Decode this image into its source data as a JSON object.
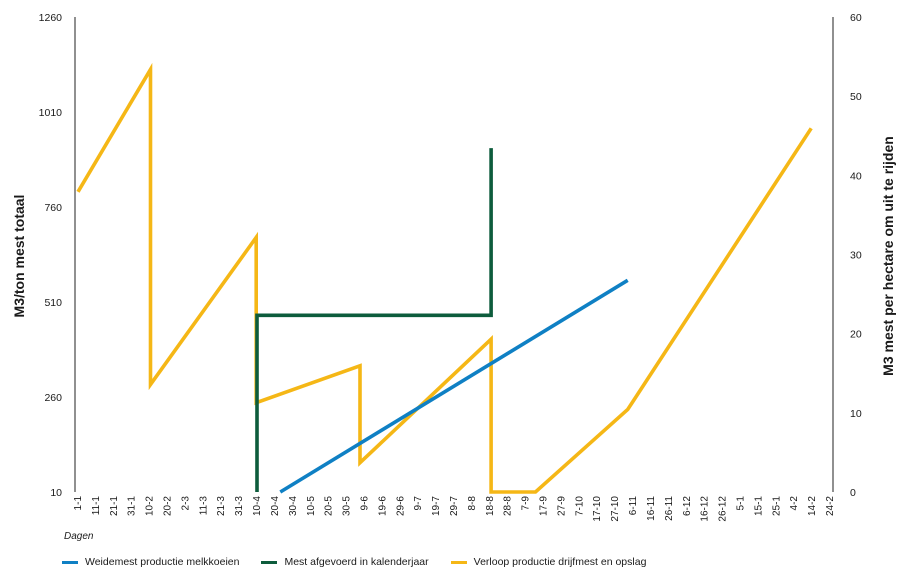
{
  "chart_data": {
    "type": "line",
    "left_axis": {
      "label": "M3/ton mest totaal",
      "ticks": [
        10,
        260,
        510,
        760,
        1010,
        1260
      ],
      "range": [
        10,
        1260
      ]
    },
    "right_axis": {
      "label": "M3 mest per hectare om uit te rijden",
      "ticks": [
        0,
        10,
        20,
        30,
        40,
        50,
        60
      ],
      "range": [
        0,
        60
      ]
    },
    "x_sublabel": "Dagen",
    "categories": [
      "1-1",
      "11-1",
      "21-1",
      "31-1",
      "10-2",
      "20-2",
      "2-3",
      "11-3",
      "21-3",
      "31-3",
      "10-4",
      "20-4",
      "30-4",
      "10-5",
      "20-5",
      "30-5",
      "9-6",
      "19-6",
      "29-6",
      "9-7",
      "19-7",
      "29-7",
      "8-8",
      "18-8",
      "28-8",
      "7-9",
      "17-9",
      "27-9",
      "7-10",
      "17-10",
      "27-10",
      "6-11",
      "16-11",
      "26-11",
      "6-12",
      "16-12",
      "26-12",
      "5-1",
      "15-1",
      "25-1",
      "4-2",
      "14-2",
      "24-2"
    ],
    "series": [
      {
        "name": "Weidemest productie melkkoeien",
        "color": "#0f80c4",
        "x": [
          11.3,
          30.7
        ],
        "y": [
          10,
          567
        ]
      },
      {
        "name": "Mest afgevoerd in kalenderjaar",
        "color": "#0d5c3c",
        "x": [
          10,
          10,
          23.07,
          23.07
        ],
        "y": [
          10,
          475,
          475,
          915
        ]
      },
      {
        "name": "Verloop productie drijfmest en opslag",
        "color": "#f5b716",
        "x": [
          0,
          4.05,
          4.05,
          9.95,
          9.95,
          15.75,
          15.75,
          23.07,
          23.07,
          25.55,
          30.7,
          40.95
        ],
        "y": [
          800,
          1122,
          293,
          680,
          245,
          342,
          87,
          412,
          10,
          10,
          227,
          967
        ]
      }
    ]
  }
}
